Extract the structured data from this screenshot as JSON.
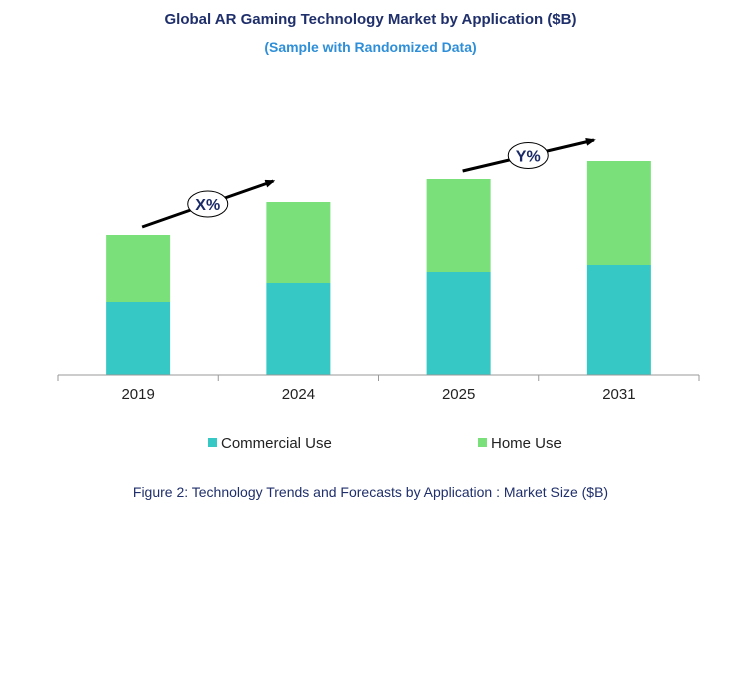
{
  "chart_data": {
    "type": "bar",
    "stacked": true,
    "title": "Global AR Gaming  Technology Market by Application ($B)",
    "subtitle": "(Sample with Randomized Data)",
    "categories": [
      "2019",
      "2024",
      "2025",
      "2031"
    ],
    "series": [
      {
        "name": "Commercial Use",
        "color": "#36c8c4",
        "values": [
          73,
          92,
          103,
          110
        ]
      },
      {
        "name": "Home Use",
        "color": "#7ae07a",
        "values": [
          67,
          81,
          93,
          104
        ]
      }
    ],
    "ylim": [
      0,
      240
    ],
    "grid": false,
    "legend_position": "bottom",
    "annotations": [
      {
        "label": "X%",
        "from_category": "2019",
        "to_category": "2024"
      },
      {
        "label": "Y%",
        "from_category": "2025",
        "to_category": "2031"
      }
    ]
  },
  "caption": "Figure 2: Technology  Trends  and Forecasts by Application : Market Size ($B)"
}
